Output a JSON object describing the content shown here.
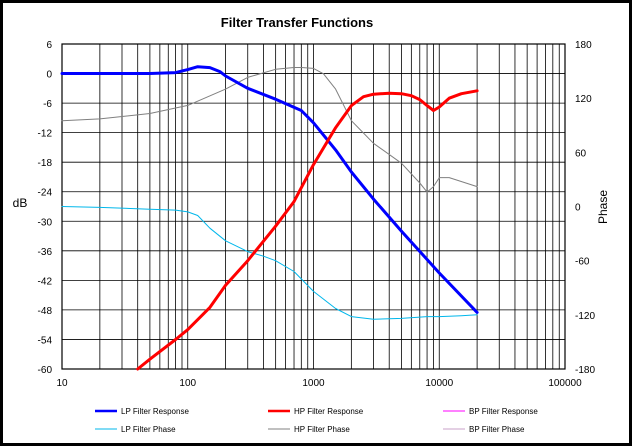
{
  "chart_data": {
    "type": "line",
    "title": "Filter Transfer Functions",
    "xlabel": "",
    "ylabel": "dB",
    "y2label": "Phase",
    "xscale": "log",
    "xlim": [
      10,
      100000
    ],
    "ylim": [
      -60,
      6
    ],
    "y2lim": [
      -180,
      180
    ],
    "x_ticks": [
      10,
      100,
      1000,
      10000,
      100000
    ],
    "x_tick_labels": [
      "10",
      "100",
      "1000",
      "10000",
      "100000"
    ],
    "y_ticks": [
      6,
      0,
      -6,
      -12,
      -18,
      -24,
      -30,
      -36,
      -42,
      -48,
      -54,
      -60
    ],
    "y_tick_labels": [
      "6",
      "0",
      "-6",
      "-12",
      "-18",
      "-24",
      "-30",
      "-36",
      "-42",
      "-48",
      "-54",
      "-60"
    ],
    "y2_ticks": [
      180,
      120,
      60,
      0,
      -60,
      -120,
      -180
    ],
    "y2_tick_labels": [
      "180",
      "120",
      "60",
      "0",
      "-60",
      "-120",
      "-180"
    ],
    "grid": true,
    "legend_position": "bottom",
    "series": [
      {
        "name": "LP Filter Response",
        "axis": "left",
        "color": "#0000ff",
        "width": 3,
        "x": [
          10,
          20,
          50,
          80,
          100,
          120,
          150,
          180,
          200,
          300,
          500,
          800,
          1000,
          1500,
          2000,
          3000,
          5000,
          10000,
          20000
        ],
        "y": [
          0,
          0,
          0,
          0.2,
          0.8,
          1.4,
          1.2,
          0.4,
          -0.5,
          -3,
          -5.2,
          -7.5,
          -10,
          -15.5,
          -20,
          -25.5,
          -32,
          -40.5,
          -48.5
        ]
      },
      {
        "name": "HP Filter Response",
        "axis": "left",
        "color": "#ff0000",
        "width": 3,
        "x": [
          40,
          50,
          80,
          100,
          150,
          200,
          300,
          500,
          700,
          1000,
          1500,
          2000,
          2500,
          3000,
          4000,
          5000,
          6000,
          7000,
          8000,
          9000,
          10000,
          12000,
          15000,
          20000
        ],
        "y": [
          -60,
          -58,
          -54,
          -52,
          -47.5,
          -43,
          -38,
          -31,
          -26,
          -18.5,
          -11,
          -6.5,
          -4.7,
          -4.2,
          -4,
          -4.1,
          -4.5,
          -5.3,
          -6.5,
          -7.5,
          -6.8,
          -5,
          -4.1,
          -3.5
        ]
      },
      {
        "name": "BP Filter Response",
        "axis": "left",
        "color": "#ff00ff",
        "width": 1,
        "x": [],
        "y": []
      },
      {
        "name": "LP Filter Phase",
        "axis": "right",
        "color": "#00b7eb",
        "width": 1,
        "x": [
          10,
          20,
          50,
          80,
          100,
          120,
          150,
          200,
          300,
          400,
          500,
          700,
          1000,
          1500,
          2000,
          3000,
          5000,
          8000,
          10000,
          15000,
          20000
        ],
        "y": [
          0,
          -1,
          -3,
          -4,
          -6,
          -10,
          -24,
          -38,
          -50,
          -55,
          -60,
          -72,
          -94,
          -113,
          -122,
          -125,
          -124,
          -122,
          -122,
          -121,
          -120
        ]
      },
      {
        "name": "HP Filter Phase",
        "axis": "right",
        "color": "#808080",
        "width": 1,
        "x": [
          10,
          20,
          50,
          100,
          200,
          300,
          500,
          700,
          800,
          1000,
          1200,
          1500,
          2000,
          3000,
          5000,
          7000,
          8000,
          9000,
          10000,
          12000,
          20000
        ],
        "y": [
          95,
          97,
          103,
          112,
          130,
          143,
          152,
          154,
          154,
          153,
          147,
          130,
          95,
          70,
          48,
          26,
          16,
          22,
          32,
          32,
          22
        ]
      },
      {
        "name": "BP Filter Phase",
        "axis": "right",
        "color": "#c8a0c8",
        "width": 1,
        "x": [],
        "y": []
      }
    ]
  }
}
